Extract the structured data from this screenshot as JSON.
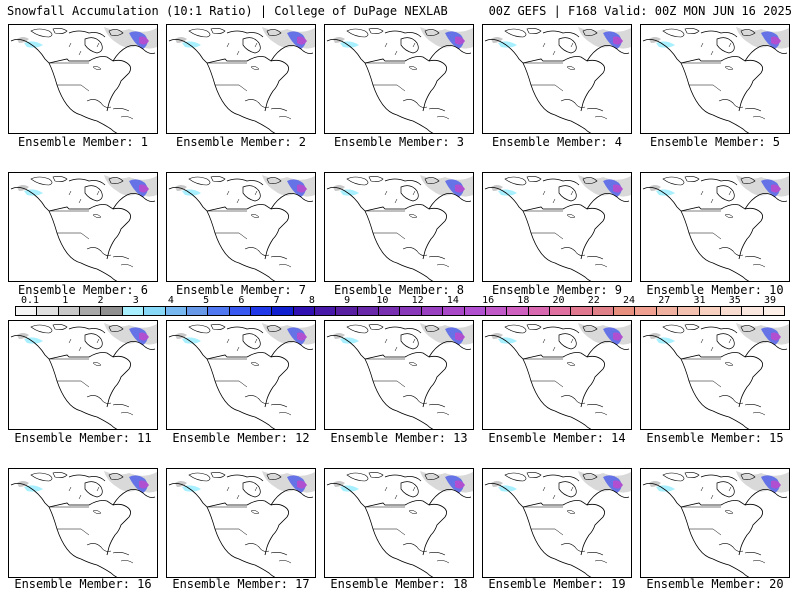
{
  "header": {
    "left_title": "Snowfall Accumulation (10:1 Ratio) | College of DuPage NEXLAB",
    "right_title": "00Z GEFS | F168 Valid: 00Z MON JUN 16 2025"
  },
  "panels": [
    {
      "label": "Ensemble Member: 1"
    },
    {
      "label": "Ensemble Member: 2"
    },
    {
      "label": "Ensemble Member: 3"
    },
    {
      "label": "Ensemble Member: 4"
    },
    {
      "label": "Ensemble Member: 5"
    },
    {
      "label": "Ensemble Member: 6"
    },
    {
      "label": "Ensemble Member: 7"
    },
    {
      "label": "Ensemble Member: 8"
    },
    {
      "label": "Ensemble Member: 9"
    },
    {
      "label": "Ensemble Member: 10"
    },
    {
      "label": "Ensemble Member: 11"
    },
    {
      "label": "Ensemble Member: 12"
    },
    {
      "label": "Ensemble Member: 13"
    },
    {
      "label": "Ensemble Member: 14"
    },
    {
      "label": "Ensemble Member: 15"
    },
    {
      "label": "Ensemble Member: 16"
    },
    {
      "label": "Ensemble Member: 17"
    },
    {
      "label": "Ensemble Member: 18"
    },
    {
      "label": "Ensemble Member: 19"
    },
    {
      "label": "Ensemble Member: 20"
    }
  ],
  "colorbar": {
    "ticks": [
      "0.1",
      "1",
      "2",
      "3",
      "4",
      "5",
      "6",
      "7",
      "8",
      "9",
      "10",
      "12",
      "14",
      "16",
      "18",
      "20",
      "22",
      "24",
      "27",
      "31",
      "35",
      "39"
    ],
    "colors": [
      "#f4f4f4",
      "#e0e0e0",
      "#c8c8c8",
      "#a8a8a8",
      "#909090",
      "#a8f0ff",
      "#88d8f8",
      "#78b8f0",
      "#6898e8",
      "#5078f0",
      "#3858f0",
      "#2038e8",
      "#1020d0",
      "#3010b0",
      "#4818a8",
      "#5820a0",
      "#6828a8",
      "#7830b0",
      "#8838b8",
      "#9840c0",
      "#a848c8",
      "#b050d0",
      "#c058c8",
      "#d060c0",
      "#d868b0",
      "#e070a0",
      "#e07890",
      "#e08088",
      "#e89080",
      "#f0a090",
      "#f0b0a0",
      "#f4c0b0",
      "#f8d0c0",
      "#f8dcd0",
      "#fae8e0",
      "#fcf0e8"
    ]
  }
}
